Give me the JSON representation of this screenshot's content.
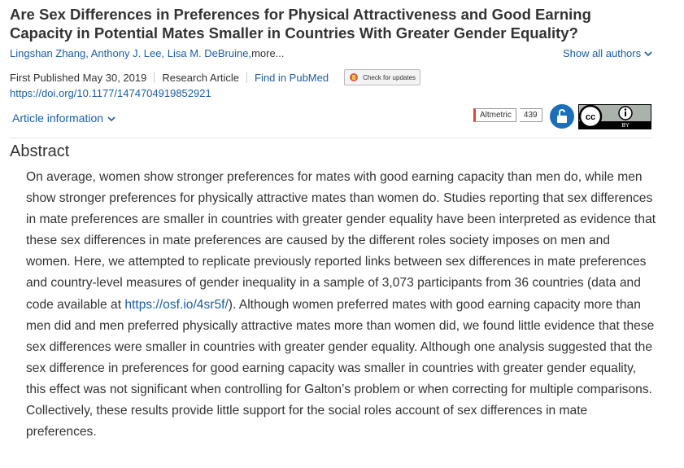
{
  "header": {
    "title": "Are Sex Differences in Preferences for Physical Attractiveness and Good Earning Capacity in Potential Mates Smaller in Countries With Greater Gender Equality?",
    "authors": [
      "Lingshan Zhang,",
      "Anthony J. Lee,",
      "Lisa M. DeBruine,"
    ],
    "more": "more...",
    "show_all": "Show all authors",
    "published": "First Published May 30, 2019",
    "article_type": "Research Article",
    "pubmed": "Find in PubMed",
    "check_updates": "Check for updates",
    "doi": "https://doi.org/10.1177/1474704919852921",
    "article_info": "Article information",
    "altmetric": {
      "label": "Altmetric",
      "count": 439
    },
    "license": {
      "cc": "cc",
      "by": "BY"
    }
  },
  "abstract": {
    "heading": "Abstract",
    "before": "On average, women show stronger preferences for mates with good earning capacity than men do, while men show stronger preferences for physically attractive mates than women do. Studies reporting that sex differences in mate preferences are smaller in countries with greater gender equality have been interpreted as evidence that these sex differences in mate preferences are caused by the different roles society imposes on men and women. Here, we attempted to replicate previously reported links between sex differences in mate preferences and country-level measures of gender inequality in a sample of 3,073 participants from 36 countries (data and code available at ",
    "link": "https://osf.io/4sr5f/",
    "after": "). Although women preferred mates with good earning capacity more than men did and men preferred physically attractive mates more than women did, we found little evidence that these sex differences were smaller in countries with greater gender equality. Although one analysis suggested that the sex difference in preferences for good earning capacity was smaller in countries with greater gender equality, this effect was not significant when controlling for Galton’s problem or when correcting for multiple comparisons. Collectively, these results provide little support for the social roles account of sex differences in mate preferences."
  }
}
